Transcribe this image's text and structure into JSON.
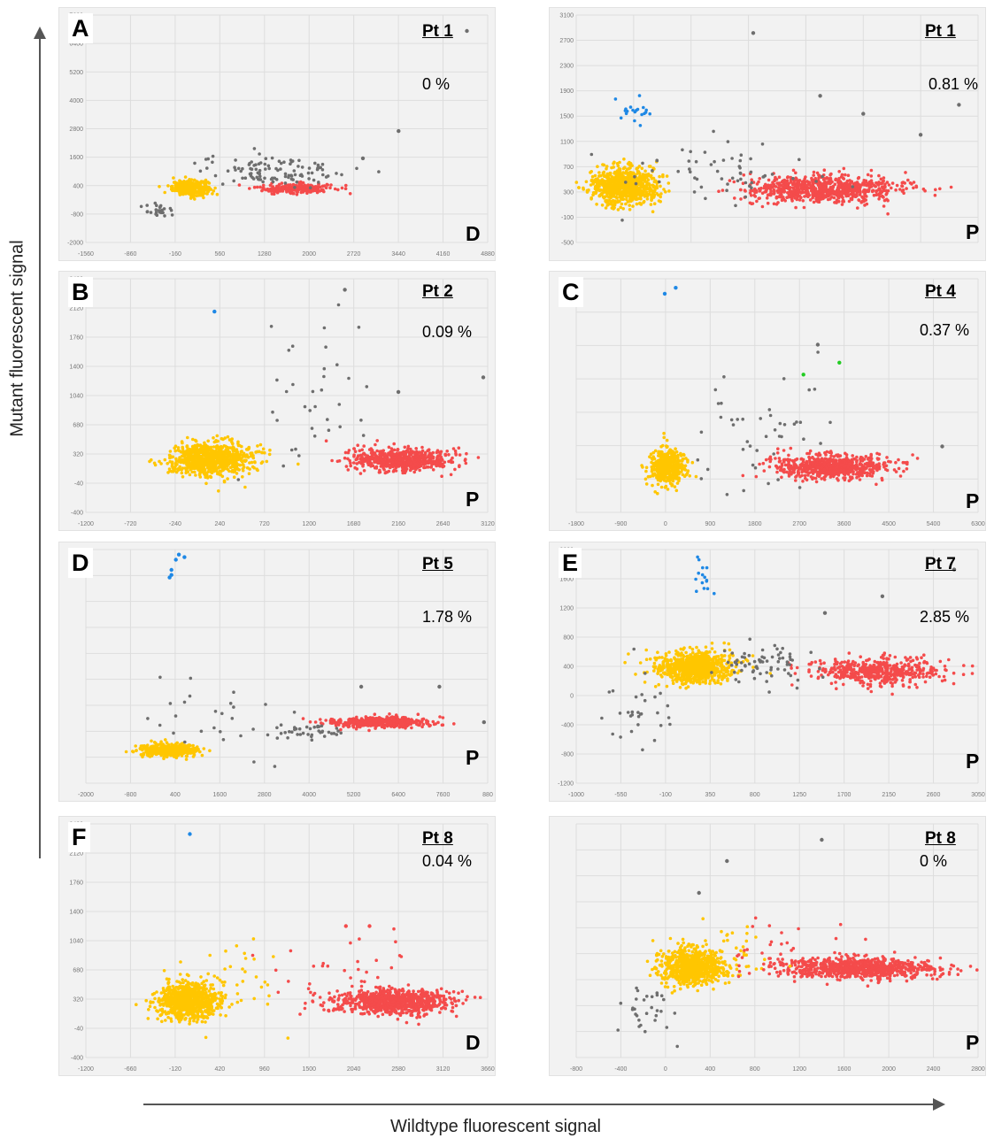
{
  "axis_titles": {
    "y": "Mutant fluorescent signal",
    "x": "Wildtype fluorescent signal"
  },
  "colors": {
    "wildtype_droplets": "#ffc600",
    "mutant_droplets": "#1e88e5",
    "reference_droplets": "#f44b4b",
    "double_negative_droplets": "#6e6e6e",
    "double_positive_droplets": "#22cc22",
    "panel_background": "#f2f2f2",
    "grid": "#dddddd"
  },
  "panels": [
    {
      "letter": "A",
      "patient": "Pt 1",
      "percentage": "0 %",
      "sample": "D"
    },
    {
      "letter": "",
      "patient": "Pt 1",
      "percentage": "0.81 %",
      "sample": "P"
    },
    {
      "letter": "B",
      "patient": "Pt 2",
      "percentage": "0.09 %",
      "sample": "P"
    },
    {
      "letter": "C",
      "patient": "Pt 4",
      "percentage": "0.37 %",
      "sample": "P"
    },
    {
      "letter": "D",
      "patient": "Pt 5",
      "percentage": "1.78 %",
      "sample": "P"
    },
    {
      "letter": "E",
      "patient": "Pt 7",
      "percentage": "2.85 %",
      "sample": "P"
    },
    {
      "letter": "F",
      "patient": "Pt 8",
      "percentage": "0.04 %",
      "sample": "D"
    },
    {
      "letter": "",
      "patient": "Pt 8",
      "percentage": "0 %",
      "sample": "P"
    }
  ],
  "chart_data": [
    {
      "type": "scatter",
      "xticks": [
        "-1560",
        "-860",
        "-160",
        "560",
        "1280",
        "2000",
        "2720",
        "3440",
        "4160",
        "4880"
      ],
      "yticks": [
        "7600",
        "6400",
        "5200",
        "4000",
        "2800",
        "1600",
        "400",
        "-800",
        "-2000"
      ],
      "xlim": [
        -1560,
        5200
      ],
      "ylim": [
        -2000,
        8000
      ],
      "clusters": [
        {
          "color": "yellow",
          "cx": 200,
          "cy": 400,
          "sx": 150,
          "sy": 160,
          "n": 350
        },
        {
          "color": "red",
          "cx": 1950,
          "cy": 380,
          "sx": 320,
          "sy": 110,
          "n": 220
        },
        {
          "color": "gray",
          "cx": 1650,
          "cy": 1150,
          "sx": 650,
          "sy": 350,
          "n": 110
        },
        {
          "color": "gray",
          "cx": -350,
          "cy": -550,
          "sx": 130,
          "sy": 180,
          "n": 25
        }
      ],
      "points": [
        {
          "color": "gray",
          "x": 4850,
          "y": 7300
        },
        {
          "color": "gray",
          "x": 3700,
          "y": 2900
        },
        {
          "color": "gray",
          "x": 3100,
          "y": 1700
        }
      ]
    },
    {
      "type": "scatter",
      "xticks": [
        "",
        "",
        "",
        "",
        "",
        "",
        "",
        ""
      ],
      "yticks": [
        "3100",
        "2700",
        "2300",
        "1900",
        "1500",
        "1100",
        "700",
        "300",
        "-100",
        "-500"
      ],
      "xlim": [
        -200,
        4000
      ],
      "ylim": [
        -500,
        3300
      ],
      "clusters": [
        {
          "color": "yellow",
          "cx": 300,
          "cy": 450,
          "sx": 170,
          "sy": 150,
          "n": 800
        },
        {
          "color": "red",
          "cx": 2350,
          "cy": 390,
          "sx": 400,
          "sy": 110,
          "n": 800
        },
        {
          "color": "blue",
          "cx": 420,
          "cy": 1720,
          "sx": 100,
          "sy": 120,
          "n": 20
        },
        {
          "color": "gray",
          "cx": 1300,
          "cy": 620,
          "sx": 600,
          "sy": 250,
          "n": 60
        }
      ],
      "points": [
        {
          "color": "gray",
          "x": 1650,
          "y": 3000
        },
        {
          "color": "gray",
          "x": 2350,
          "y": 1950
        },
        {
          "color": "gray",
          "x": 2800,
          "y": 1650
        },
        {
          "color": "gray",
          "x": 3400,
          "y": 1300
        },
        {
          "color": "gray",
          "x": 3800,
          "y": 1800
        }
      ]
    },
    {
      "type": "scatter",
      "xticks": [
        "-1200",
        "-720",
        "-240",
        "240",
        "720",
        "1200",
        "1680",
        "2160",
        "2640",
        "3120"
      ],
      "yticks": [
        "2480",
        "2120",
        "1760",
        "1400",
        "1040",
        "680",
        "320",
        "-40",
        "-400"
      ],
      "xlim": [
        -1200,
        3300
      ],
      "ylim": [
        -400,
        2800
      ],
      "clusters": [
        {
          "color": "yellow",
          "cx": 200,
          "cy": 330,
          "sx": 220,
          "sy": 110,
          "n": 850
        },
        {
          "color": "red",
          "cx": 2300,
          "cy": 320,
          "sx": 280,
          "sy": 80,
          "n": 650
        },
        {
          "color": "gray",
          "cx": 1300,
          "cy": 1100,
          "sx": 300,
          "sy": 450,
          "n": 35
        }
      ],
      "points": [
        {
          "color": "blue",
          "x": 240,
          "y": 2350
        },
        {
          "color": "gray",
          "x": 1700,
          "y": 2650
        },
        {
          "color": "gray",
          "x": 3250,
          "y": 1450
        },
        {
          "color": "gray",
          "x": 2300,
          "y": 1250
        }
      ]
    },
    {
      "type": "scatter",
      "xticks": [
        "-1800",
        "-900",
        "0",
        "900",
        "1800",
        "2700",
        "3600",
        "4500",
        "5400",
        "6300"
      ],
      "yticks": [
        "",
        "",
        "",
        "",
        "",
        "",
        "",
        ""
      ],
      "xlim": [
        -1800,
        6600
      ],
      "ylim": [
        -500,
        3400
      ],
      "clusters": [
        {
          "color": "yellow",
          "cx": 100,
          "cy": 250,
          "sx": 180,
          "sy": 150,
          "n": 450
        },
        {
          "color": "red",
          "cx": 3550,
          "cy": 260,
          "sx": 600,
          "sy": 100,
          "n": 700
        },
        {
          "color": "gray",
          "cx": 1800,
          "cy": 900,
          "sx": 800,
          "sy": 500,
          "n": 45
        }
      ],
      "points": [
        {
          "color": "blue",
          "x": 50,
          "y": 3150
        },
        {
          "color": "blue",
          "x": 280,
          "y": 3250
        },
        {
          "color": "green",
          "x": 2950,
          "y": 1800
        },
        {
          "color": "green",
          "x": 3700,
          "y": 2000
        },
        {
          "color": "gray",
          "x": 3250,
          "y": 2300
        },
        {
          "color": "gray",
          "x": 5850,
          "y": 600
        }
      ]
    },
    {
      "type": "scatter",
      "xticks": [
        "-2000",
        "-800",
        "400",
        "1600",
        "2800",
        "4000",
        "5200",
        "6400",
        "7600",
        "880"
      ],
      "yticks": [
        "",
        "",
        "",
        "",
        "",
        "",
        "",
        "",
        "",
        ""
      ],
      "xlim": [
        -2000,
        8800
      ],
      "ylim": [
        -1000,
        3600
      ],
      "clusters": [
        {
          "color": "yellow",
          "cx": 250,
          "cy": -350,
          "sx": 350,
          "sy": 60,
          "n": 500
        },
        {
          "color": "red",
          "cx": 5900,
          "cy": 200,
          "sx": 650,
          "sy": 50,
          "n": 450
        },
        {
          "color": "gray",
          "cx": 3900,
          "cy": 20,
          "sx": 500,
          "sy": 80,
          "n": 40
        },
        {
          "color": "gray",
          "cx": 1500,
          "cy": 300,
          "sx": 900,
          "sy": 350,
          "n": 25
        }
      ],
      "points": [
        {
          "color": "blue",
          "x": 300,
          "y": 3200
        },
        {
          "color": "blue",
          "x": 420,
          "y": 3400
        },
        {
          "color": "blue",
          "x": 300,
          "y": 3100
        },
        {
          "color": "blue",
          "x": 500,
          "y": 3500
        },
        {
          "color": "blue",
          "x": 650,
          "y": 3450
        },
        {
          "color": "blue",
          "x": 250,
          "y": 3050
        },
        {
          "color": "gray",
          "x": 5400,
          "y": 900
        },
        {
          "color": "gray",
          "x": 7500,
          "y": 900
        },
        {
          "color": "gray",
          "x": 8700,
          "y": 200
        }
      ]
    },
    {
      "type": "scatter",
      "xticks": [
        "-1000",
        "-550",
        "-100",
        "350",
        "800",
        "1250",
        "1700",
        "2150",
        "2600",
        "3050"
      ],
      "yticks": [
        "2000",
        "1600",
        "1200",
        "800",
        "400",
        "0",
        "-400",
        "-800",
        "-1200"
      ],
      "xlim": [
        -1000,
        3200
      ],
      "ylim": [
        -1300,
        2200
      ],
      "clusters": [
        {
          "color": "yellow",
          "cx": 250,
          "cy": 430,
          "sx": 200,
          "sy": 120,
          "n": 800
        },
        {
          "color": "red",
          "cx": 2150,
          "cy": 380,
          "sx": 350,
          "sy": 90,
          "n": 500
        },
        {
          "color": "gray",
          "cx": 900,
          "cy": 480,
          "sx": 250,
          "sy": 150,
          "n": 70
        },
        {
          "color": "gray",
          "cx": -250,
          "cy": -150,
          "sx": 180,
          "sy": 300,
          "n": 30
        },
        {
          "color": "blue",
          "cx": 300,
          "cy": 1800,
          "sx": 80,
          "sy": 150,
          "n": 15
        }
      ],
      "points": [
        {
          "color": "gray",
          "x": 2950,
          "y": 1900
        },
        {
          "color": "gray",
          "x": 2200,
          "y": 1500
        },
        {
          "color": "gray",
          "x": 1600,
          "y": 1250
        }
      ]
    },
    {
      "type": "scatter",
      "xticks": [
        "-1200",
        "-660",
        "-120",
        "420",
        "960",
        "1500",
        "2040",
        "2580",
        "3120",
        "3660"
      ],
      "yticks": [
        "2480",
        "2120",
        "1760",
        "1400",
        "1040",
        "680",
        "320",
        "-40",
        "-400"
      ],
      "xlim": [
        -1200,
        3900
      ],
      "ylim": [
        -400,
        2800
      ],
      "clusters": [
        {
          "color": "yellow",
          "cx": 100,
          "cy": 380,
          "sx": 200,
          "sy": 130,
          "n": 850
        },
        {
          "color": "red",
          "cx": 2700,
          "cy": 360,
          "sx": 350,
          "sy": 80,
          "n": 850
        },
        {
          "color": "red",
          "cx": 2100,
          "cy": 650,
          "sx": 500,
          "sy": 300,
          "n": 40
        },
        {
          "color": "yellow",
          "cx": 750,
          "cy": 650,
          "sx": 300,
          "sy": 250,
          "n": 25
        }
      ],
      "points": [
        {
          "color": "blue",
          "x": 120,
          "y": 2660
        },
        {
          "color": "red",
          "x": 2100,
          "y": 1400
        },
        {
          "color": "red",
          "x": 2400,
          "y": 1400
        }
      ]
    },
    {
      "type": "scatter",
      "xticks": [
        "-800",
        "-400",
        "0",
        "400",
        "800",
        "1200",
        "1600",
        "2000",
        "2400",
        "2800"
      ],
      "yticks": [
        "",
        "",
        "",
        "",
        "",
        "",
        "",
        "",
        "",
        ""
      ],
      "xlim": [
        -800,
        2800
      ],
      "ylim": [
        -1300,
        3100
      ],
      "clusters": [
        {
          "color": "yellow",
          "cx": 250,
          "cy": 400,
          "sx": 160,
          "sy": 170,
          "n": 700
        },
        {
          "color": "red",
          "cx": 1750,
          "cy": 380,
          "sx": 350,
          "sy": 100,
          "n": 800
        },
        {
          "color": "yellow",
          "cx": 600,
          "cy": 700,
          "sx": 250,
          "sy": 300,
          "n": 25
        },
        {
          "color": "red",
          "cx": 1100,
          "cy": 650,
          "sx": 300,
          "sy": 350,
          "n": 35
        },
        {
          "color": "gray",
          "cx": -150,
          "cy": -400,
          "sx": 120,
          "sy": 250,
          "n": 30
        }
      ],
      "points": [
        {
          "color": "gray",
          "x": 1400,
          "y": 2800
        },
        {
          "color": "gray",
          "x": 550,
          "y": 2400
        },
        {
          "color": "gray",
          "x": 300,
          "y": 1800
        }
      ]
    }
  ]
}
